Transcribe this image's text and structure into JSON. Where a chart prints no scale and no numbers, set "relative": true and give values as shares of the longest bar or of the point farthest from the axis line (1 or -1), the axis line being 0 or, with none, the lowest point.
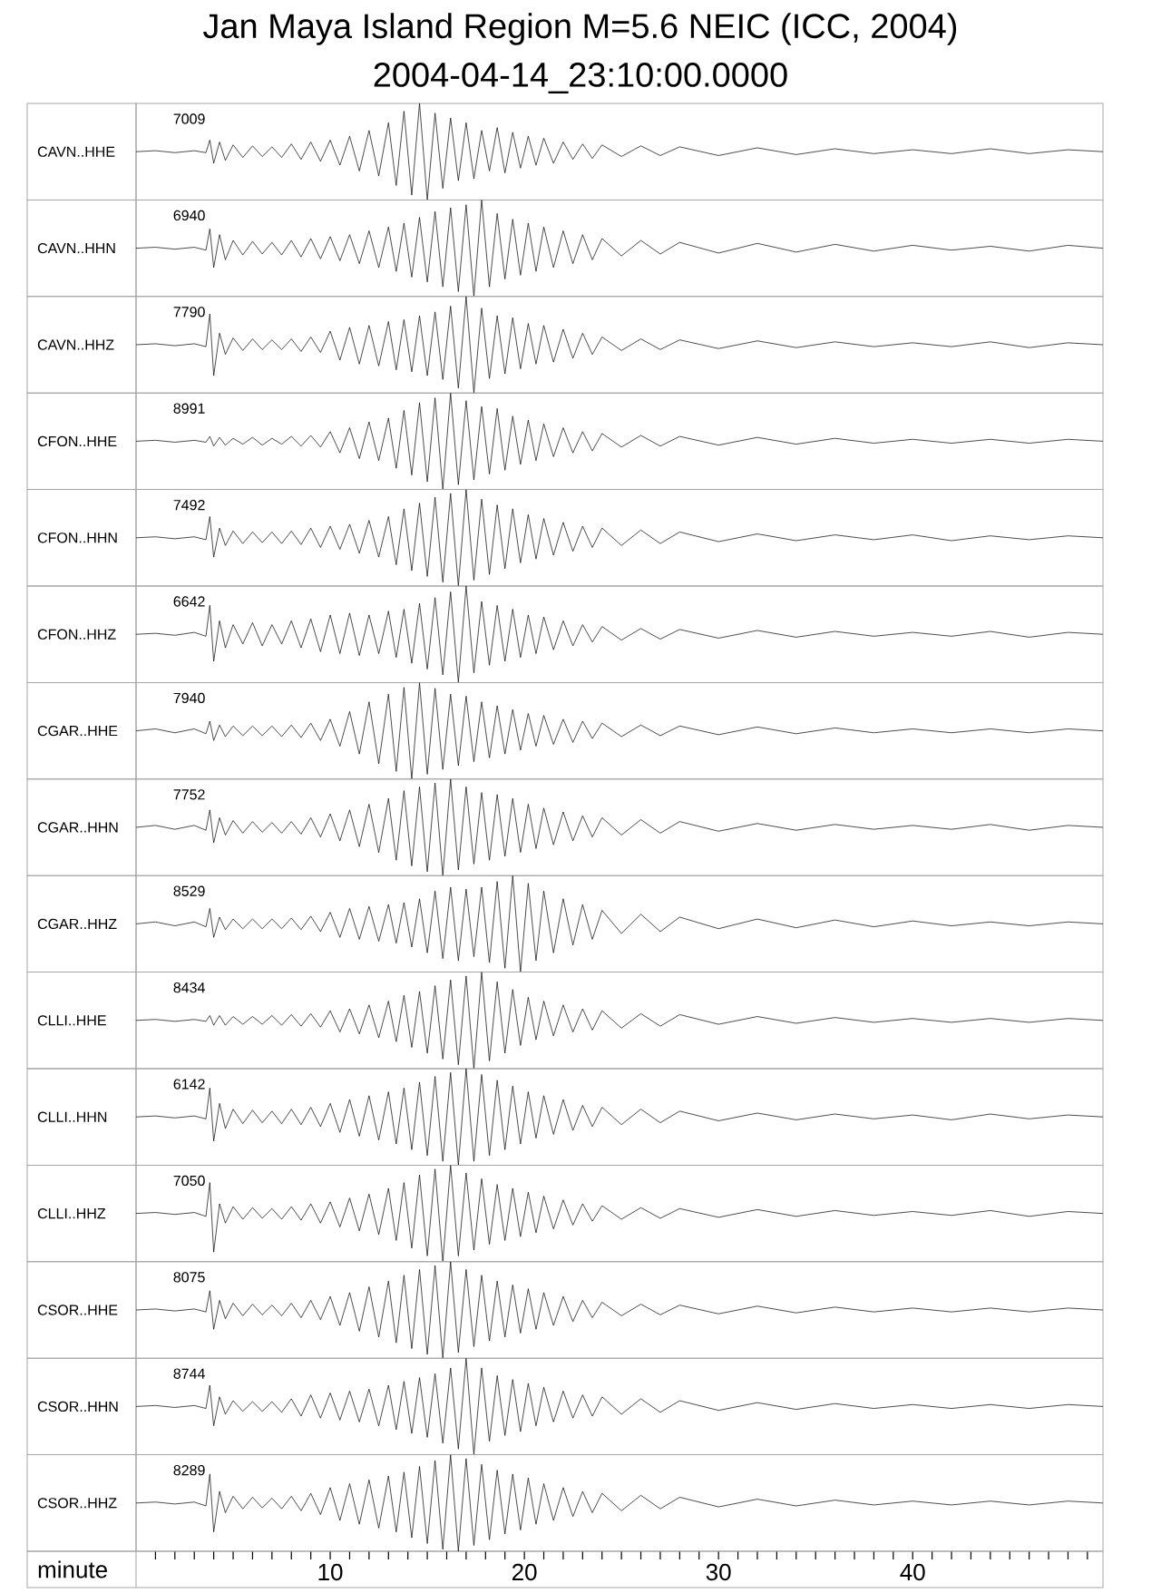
{
  "chart_data": [
    {
      "type": "line",
      "title": "Jan Maya Island Region M=5.6 NEIC (ICC, 2004)",
      "subtitle": "2004-04-14_23:10:00.0000",
      "ylabel": "CAVN..HHE",
      "annotations": [
        "7009"
      ],
      "relative": true,
      "tick_labels": false,
      "color": "#000000",
      "xlim": [
        0,
        49.8
      ],
      "x": [
        0,
        1,
        2,
        3,
        3.6,
        3.8,
        4,
        4.3,
        4.6,
        5,
        5.5,
        6,
        6.5,
        7,
        7.5,
        8,
        8.5,
        9,
        9.5,
        10,
        10.5,
        11,
        11.5,
        12,
        12.5,
        13,
        13.4,
        13.8,
        14.2,
        14.6,
        15,
        15.4,
        15.8,
        16.2,
        16.6,
        17,
        17.4,
        17.8,
        18.2,
        18.6,
        19,
        19.4,
        19.8,
        20.2,
        20.6,
        21,
        21.5,
        22,
        22.5,
        23,
        23.5,
        24,
        25,
        26,
        27,
        28,
        30,
        32,
        34,
        36,
        38,
        40,
        42,
        44,
        46,
        48,
        49.8
      ],
      "values": [
        0.5,
        0.51,
        0.49,
        0.51,
        0.49,
        0.62,
        0.38,
        0.6,
        0.41,
        0.57,
        0.44,
        0.56,
        0.45,
        0.55,
        0.44,
        0.58,
        0.42,
        0.6,
        0.4,
        0.62,
        0.36,
        0.66,
        0.3,
        0.72,
        0.25,
        0.8,
        0.15,
        0.92,
        0.05,
        1.0,
        0.0,
        0.9,
        0.12,
        0.85,
        0.2,
        0.8,
        0.22,
        0.72,
        0.3,
        0.75,
        0.28,
        0.7,
        0.33,
        0.66,
        0.36,
        0.64,
        0.38,
        0.6,
        0.42,
        0.58,
        0.43,
        0.57,
        0.45,
        0.56,
        0.46,
        0.55,
        0.46,
        0.54,
        0.47,
        0.53,
        0.48,
        0.52,
        0.48,
        0.53,
        0.48,
        0.52,
        0.5
      ]
    },
    {
      "type": "line",
      "ylabel": "CAVN..HHN",
      "annotations": [
        "6940"
      ],
      "relative": true,
      "tick_labels": false,
      "color": "#000000",
      "xlim": [
        0,
        49.8
      ],
      "x": [
        0,
        1,
        2,
        3,
        3.6,
        3.8,
        4,
        4.3,
        4.6,
        5,
        5.5,
        6,
        6.5,
        7,
        7.5,
        8,
        8.5,
        9,
        9.5,
        10,
        10.5,
        11,
        11.5,
        12,
        12.5,
        13,
        13.4,
        13.8,
        14.2,
        14.6,
        15,
        15.4,
        15.8,
        16.2,
        16.6,
        17,
        17.4,
        17.8,
        18.2,
        18.6,
        19,
        19.4,
        19.8,
        20.2,
        20.6,
        21,
        21.5,
        22,
        22.5,
        23,
        23.5,
        24,
        25,
        26,
        27,
        28,
        30,
        32,
        34,
        36,
        38,
        40,
        42,
        44,
        46,
        48,
        49.8
      ],
      "values": [
        0.5,
        0.51,
        0.49,
        0.51,
        0.48,
        0.7,
        0.3,
        0.64,
        0.38,
        0.58,
        0.43,
        0.57,
        0.44,
        0.56,
        0.43,
        0.58,
        0.41,
        0.6,
        0.39,
        0.62,
        0.37,
        0.64,
        0.34,
        0.68,
        0.3,
        0.72,
        0.26,
        0.76,
        0.2,
        0.82,
        0.15,
        0.88,
        0.1,
        0.92,
        0.05,
        0.95,
        0.0,
        1.0,
        0.1,
        0.86,
        0.18,
        0.8,
        0.22,
        0.76,
        0.26,
        0.72,
        0.3,
        0.68,
        0.34,
        0.64,
        0.38,
        0.6,
        0.42,
        0.58,
        0.44,
        0.56,
        0.45,
        0.55,
        0.46,
        0.54,
        0.47,
        0.53,
        0.48,
        0.52,
        0.47,
        0.53,
        0.5
      ]
    },
    {
      "type": "line",
      "ylabel": "CAVN..HHZ",
      "annotations": [
        "7790"
      ],
      "relative": true,
      "tick_labels": false,
      "color": "#000000",
      "xlim": [
        0,
        49.8
      ],
      "x": [
        0,
        1,
        2,
        3,
        3.6,
        3.8,
        4,
        4.3,
        4.6,
        5,
        5.5,
        6,
        6.5,
        7,
        7.5,
        8,
        8.5,
        9,
        9.5,
        10,
        10.5,
        11,
        11.5,
        12,
        12.5,
        13,
        13.4,
        13.8,
        14.2,
        14.6,
        15,
        15.4,
        15.8,
        16.2,
        16.6,
        17,
        17.4,
        17.8,
        18.2,
        18.6,
        19,
        19.4,
        19.8,
        20.2,
        20.6,
        21,
        21.5,
        22,
        22.5,
        23,
        23.5,
        24,
        25,
        26,
        27,
        28,
        30,
        32,
        34,
        36,
        38,
        40,
        42,
        44,
        46,
        48,
        49.8
      ],
      "values": [
        0.5,
        0.51,
        0.49,
        0.51,
        0.48,
        0.82,
        0.18,
        0.62,
        0.4,
        0.57,
        0.44,
        0.56,
        0.45,
        0.55,
        0.45,
        0.56,
        0.43,
        0.58,
        0.42,
        0.64,
        0.34,
        0.68,
        0.3,
        0.7,
        0.28,
        0.74,
        0.24,
        0.76,
        0.22,
        0.8,
        0.18,
        0.84,
        0.14,
        0.9,
        0.05,
        1.0,
        0.0,
        0.88,
        0.15,
        0.8,
        0.2,
        0.78,
        0.25,
        0.72,
        0.3,
        0.7,
        0.32,
        0.66,
        0.36,
        0.62,
        0.4,
        0.58,
        0.44,
        0.56,
        0.45,
        0.55,
        0.46,
        0.54,
        0.47,
        0.53,
        0.48,
        0.52,
        0.48,
        0.53,
        0.47,
        0.52,
        0.5
      ]
    },
    {
      "type": "line",
      "ylabel": "CFON..HHE",
      "annotations": [
        "8991"
      ],
      "relative": true,
      "tick_labels": false,
      "color": "#000000",
      "xlim": [
        0,
        49.8
      ],
      "x": [
        0,
        1,
        2,
        3,
        3.6,
        3.8,
        4,
        4.3,
        4.6,
        5,
        5.5,
        6,
        6.5,
        7,
        7.5,
        8,
        8.5,
        9,
        9.5,
        10,
        10.5,
        11,
        11.5,
        12,
        12.5,
        13,
        13.4,
        13.8,
        14.2,
        14.6,
        15,
        15.4,
        15.8,
        16.2,
        16.6,
        17,
        17.4,
        17.8,
        18.2,
        18.6,
        19,
        19.4,
        19.8,
        20.2,
        20.6,
        21,
        21.5,
        22,
        22.5,
        23,
        23.5,
        24,
        25,
        26,
        27,
        28,
        30,
        32,
        34,
        36,
        38,
        40,
        42,
        44,
        46,
        48,
        49.8
      ],
      "values": [
        0.5,
        0.51,
        0.49,
        0.51,
        0.49,
        0.55,
        0.45,
        0.54,
        0.46,
        0.53,
        0.47,
        0.54,
        0.46,
        0.53,
        0.47,
        0.55,
        0.45,
        0.56,
        0.44,
        0.6,
        0.38,
        0.64,
        0.32,
        0.7,
        0.3,
        0.74,
        0.22,
        0.82,
        0.15,
        0.9,
        0.08,
        0.95,
        0.0,
        1.0,
        0.05,
        0.92,
        0.1,
        0.86,
        0.16,
        0.84,
        0.2,
        0.76,
        0.26,
        0.72,
        0.3,
        0.68,
        0.34,
        0.64,
        0.38,
        0.6,
        0.4,
        0.58,
        0.44,
        0.56,
        0.45,
        0.55,
        0.46,
        0.54,
        0.47,
        0.53,
        0.48,
        0.52,
        0.48,
        0.52,
        0.48,
        0.52,
        0.5
      ]
    },
    {
      "type": "line",
      "ylabel": "CFON..HHN",
      "annotations": [
        "7492"
      ],
      "relative": true,
      "tick_labels": false,
      "color": "#000000",
      "xlim": [
        0,
        49.8
      ],
      "x": [
        0,
        1,
        2,
        3,
        3.6,
        3.8,
        4,
        4.3,
        4.6,
        5,
        5.5,
        6,
        6.5,
        7,
        7.5,
        8,
        8.5,
        9,
        9.5,
        10,
        10.5,
        11,
        11.5,
        12,
        12.5,
        13,
        13.4,
        13.8,
        14.2,
        14.6,
        15,
        15.4,
        15.8,
        16.2,
        16.6,
        17,
        17.4,
        17.8,
        18.2,
        18.6,
        19,
        19.4,
        19.8,
        20.2,
        20.6,
        21,
        21.5,
        22,
        22.5,
        23,
        23.5,
        24,
        25,
        26,
        27,
        28,
        30,
        32,
        34,
        36,
        38,
        40,
        42,
        44,
        46,
        48,
        49.8
      ],
      "values": [
        0.5,
        0.51,
        0.49,
        0.51,
        0.48,
        0.72,
        0.3,
        0.6,
        0.42,
        0.57,
        0.44,
        0.56,
        0.45,
        0.56,
        0.44,
        0.57,
        0.43,
        0.6,
        0.4,
        0.62,
        0.38,
        0.64,
        0.34,
        0.68,
        0.3,
        0.72,
        0.22,
        0.8,
        0.16,
        0.86,
        0.1,
        0.92,
        0.04,
        0.96,
        0.0,
        1.0,
        0.06,
        0.9,
        0.12,
        0.84,
        0.18,
        0.8,
        0.24,
        0.74,
        0.28,
        0.7,
        0.32,
        0.66,
        0.36,
        0.62,
        0.4,
        0.6,
        0.42,
        0.58,
        0.44,
        0.56,
        0.46,
        0.54,
        0.47,
        0.53,
        0.48,
        0.53,
        0.47,
        0.52,
        0.48,
        0.52,
        0.5
      ]
    },
    {
      "type": "line",
      "ylabel": "CFON..HHZ",
      "annotations": [
        "6642"
      ],
      "relative": true,
      "tick_labels": false,
      "color": "#000000",
      "xlim": [
        0,
        49.8
      ],
      "x": [
        0,
        1,
        2,
        3,
        3.6,
        3.8,
        4,
        4.3,
        4.6,
        5,
        5.5,
        6,
        6.5,
        7,
        7.5,
        8,
        8.5,
        9,
        9.5,
        10,
        10.5,
        11,
        11.5,
        12,
        12.5,
        13,
        13.4,
        13.8,
        14.2,
        14.6,
        15,
        15.4,
        15.8,
        16.2,
        16.6,
        17,
        17.4,
        17.8,
        18.2,
        18.6,
        19,
        19.4,
        19.8,
        20.2,
        20.6,
        21,
        21.5,
        22,
        22.5,
        23,
        23.5,
        24,
        25,
        26,
        27,
        28,
        30,
        32,
        34,
        36,
        38,
        40,
        42,
        44,
        46,
        48,
        49.8
      ],
      "values": [
        0.5,
        0.51,
        0.49,
        0.52,
        0.48,
        0.8,
        0.22,
        0.64,
        0.36,
        0.6,
        0.4,
        0.62,
        0.38,
        0.6,
        0.4,
        0.64,
        0.36,
        0.66,
        0.32,
        0.7,
        0.3,
        0.72,
        0.28,
        0.7,
        0.3,
        0.74,
        0.26,
        0.76,
        0.2,
        0.82,
        0.14,
        0.88,
        0.08,
        0.94,
        0.0,
        1.0,
        0.1,
        0.84,
        0.18,
        0.8,
        0.22,
        0.76,
        0.26,
        0.7,
        0.3,
        0.68,
        0.34,
        0.64,
        0.38,
        0.6,
        0.42,
        0.58,
        0.44,
        0.56,
        0.45,
        0.55,
        0.46,
        0.54,
        0.47,
        0.53,
        0.48,
        0.52,
        0.48,
        0.53,
        0.47,
        0.52,
        0.5
      ]
    },
    {
      "type": "line",
      "ylabel": "CGAR..HHE",
      "annotations": [
        "7940"
      ],
      "relative": true,
      "tick_labels": false,
      "color": "#000000",
      "xlim": [
        0,
        49.8
      ],
      "x": [
        0,
        1,
        2,
        3,
        3.6,
        3.8,
        4,
        4.3,
        4.6,
        5,
        5.5,
        6,
        6.5,
        7,
        7.5,
        8,
        8.5,
        9,
        9.5,
        10,
        10.5,
        11,
        11.5,
        12,
        12.5,
        13,
        13.4,
        13.8,
        14.2,
        14.6,
        15,
        15.4,
        15.8,
        16.2,
        16.6,
        17,
        17.4,
        17.8,
        18.2,
        18.6,
        19,
        19.4,
        19.8,
        20.2,
        20.6,
        21,
        21.5,
        22,
        22.5,
        23,
        23.5,
        24,
        25,
        26,
        27,
        28,
        30,
        32,
        34,
        36,
        38,
        40,
        42,
        44,
        46,
        48,
        49.8
      ],
      "values": [
        0.5,
        0.52,
        0.48,
        0.52,
        0.47,
        0.6,
        0.4,
        0.56,
        0.44,
        0.55,
        0.45,
        0.55,
        0.45,
        0.55,
        0.44,
        0.56,
        0.43,
        0.58,
        0.4,
        0.62,
        0.34,
        0.7,
        0.26,
        0.8,
        0.16,
        0.88,
        0.08,
        0.95,
        0.0,
        1.0,
        0.05,
        0.94,
        0.1,
        0.88,
        0.14,
        0.86,
        0.18,
        0.8,
        0.22,
        0.76,
        0.26,
        0.72,
        0.3,
        0.68,
        0.34,
        0.66,
        0.36,
        0.62,
        0.38,
        0.6,
        0.42,
        0.58,
        0.44,
        0.56,
        0.45,
        0.55,
        0.46,
        0.54,
        0.47,
        0.53,
        0.48,
        0.52,
        0.48,
        0.52,
        0.48,
        0.52,
        0.5
      ]
    },
    {
      "type": "line",
      "ylabel": "CGAR..HHN",
      "annotations": [
        "7752"
      ],
      "relative": true,
      "tick_labels": false,
      "color": "#000000",
      "xlim": [
        0,
        49.8
      ],
      "x": [
        0,
        1,
        2,
        3,
        3.6,
        3.8,
        4,
        4.3,
        4.6,
        5,
        5.5,
        6,
        6.5,
        7,
        7.5,
        8,
        8.5,
        9,
        9.5,
        10,
        10.5,
        11,
        11.5,
        12,
        12.5,
        13,
        13.4,
        13.8,
        14.2,
        14.6,
        15,
        15.4,
        15.8,
        16.2,
        16.6,
        17,
        17.4,
        17.8,
        18.2,
        18.6,
        19,
        19.4,
        19.8,
        20.2,
        20.6,
        21,
        21.5,
        22,
        22.5,
        23,
        23.5,
        24,
        25,
        26,
        27,
        28,
        30,
        32,
        34,
        36,
        38,
        40,
        42,
        44,
        46,
        48,
        49.8
      ],
      "values": [
        0.5,
        0.52,
        0.48,
        0.52,
        0.47,
        0.68,
        0.34,
        0.6,
        0.42,
        0.57,
        0.44,
        0.56,
        0.45,
        0.55,
        0.44,
        0.56,
        0.43,
        0.6,
        0.4,
        0.64,
        0.36,
        0.68,
        0.3,
        0.74,
        0.24,
        0.8,
        0.16,
        0.88,
        0.1,
        0.92,
        0.04,
        0.96,
        0.0,
        1.0,
        0.06,
        0.92,
        0.12,
        0.86,
        0.16,
        0.84,
        0.2,
        0.8,
        0.24,
        0.74,
        0.28,
        0.7,
        0.32,
        0.66,
        0.36,
        0.62,
        0.4,
        0.6,
        0.42,
        0.58,
        0.44,
        0.56,
        0.46,
        0.54,
        0.47,
        0.53,
        0.48,
        0.52,
        0.48,
        0.53,
        0.47,
        0.52,
        0.5
      ]
    },
    {
      "type": "line",
      "ylabel": "CGAR..HHZ",
      "annotations": [
        "8529"
      ],
      "relative": true,
      "tick_labels": false,
      "color": "#000000",
      "xlim": [
        0,
        49.8
      ],
      "x": [
        0,
        1,
        2,
        3,
        3.6,
        3.8,
        4,
        4.3,
        4.6,
        5,
        5.5,
        6,
        6.5,
        7,
        7.5,
        8,
        8.5,
        9,
        9.5,
        10,
        10.5,
        11,
        11.5,
        12,
        12.5,
        13,
        13.4,
        13.8,
        14.2,
        14.6,
        15,
        15.4,
        15.8,
        16.2,
        16.6,
        17,
        17.4,
        17.8,
        18.2,
        18.6,
        19,
        19.4,
        19.8,
        20.2,
        20.6,
        21,
        21.5,
        22,
        22.5,
        23,
        23.5,
        24,
        25,
        26,
        27,
        28,
        30,
        32,
        34,
        36,
        38,
        40,
        42,
        44,
        46,
        48,
        49.8
      ],
      "values": [
        0.5,
        0.52,
        0.48,
        0.52,
        0.47,
        0.66,
        0.36,
        0.57,
        0.44,
        0.55,
        0.45,
        0.55,
        0.45,
        0.55,
        0.45,
        0.56,
        0.44,
        0.58,
        0.42,
        0.62,
        0.36,
        0.66,
        0.34,
        0.68,
        0.32,
        0.7,
        0.3,
        0.72,
        0.26,
        0.76,
        0.2,
        0.84,
        0.14,
        0.88,
        0.12,
        0.86,
        0.16,
        0.88,
        0.1,
        0.94,
        0.04,
        1.0,
        0.0,
        0.92,
        0.12,
        0.84,
        0.2,
        0.76,
        0.28,
        0.7,
        0.34,
        0.64,
        0.4,
        0.6,
        0.42,
        0.57,
        0.45,
        0.55,
        0.46,
        0.54,
        0.47,
        0.53,
        0.48,
        0.52,
        0.48,
        0.52,
        0.5
      ]
    },
    {
      "type": "line",
      "ylabel": "CLLI..HHE",
      "annotations": [
        "8434"
      ],
      "relative": true,
      "tick_labels": false,
      "color": "#000000",
      "xlim": [
        0,
        49.8
      ],
      "x": [
        0,
        1,
        2,
        3,
        3.6,
        3.8,
        4,
        4.3,
        4.6,
        5,
        5.5,
        6,
        6.5,
        7,
        7.5,
        8,
        8.5,
        9,
        9.5,
        10,
        10.5,
        11,
        11.5,
        12,
        12.5,
        13,
        13.4,
        13.8,
        14.2,
        14.6,
        15,
        15.4,
        15.8,
        16.2,
        16.6,
        17,
        17.4,
        17.8,
        18.2,
        18.6,
        19,
        19.4,
        19.8,
        20.2,
        20.6,
        21,
        21.5,
        22,
        22.5,
        23,
        23.5,
        24,
        25,
        26,
        27,
        28,
        30,
        32,
        34,
        36,
        38,
        40,
        42,
        44,
        46,
        48,
        49.8
      ],
      "values": [
        0.5,
        0.51,
        0.49,
        0.51,
        0.49,
        0.55,
        0.45,
        0.55,
        0.45,
        0.54,
        0.46,
        0.54,
        0.46,
        0.55,
        0.45,
        0.56,
        0.44,
        0.57,
        0.43,
        0.6,
        0.38,
        0.62,
        0.36,
        0.66,
        0.32,
        0.7,
        0.28,
        0.76,
        0.22,
        0.8,
        0.16,
        0.86,
        0.1,
        0.92,
        0.04,
        0.96,
        0.0,
        1.0,
        0.08,
        0.9,
        0.16,
        0.82,
        0.24,
        0.74,
        0.3,
        0.7,
        0.34,
        0.66,
        0.38,
        0.62,
        0.4,
        0.6,
        0.42,
        0.57,
        0.44,
        0.56,
        0.46,
        0.54,
        0.47,
        0.53,
        0.48,
        0.52,
        0.48,
        0.52,
        0.48,
        0.52,
        0.5
      ]
    },
    {
      "type": "line",
      "ylabel": "CLLI..HHN",
      "annotations": [
        "6142"
      ],
      "relative": true,
      "tick_labels": false,
      "color": "#000000",
      "xlim": [
        0,
        49.8
      ],
      "x": [
        0,
        1,
        2,
        3,
        3.6,
        3.8,
        4,
        4.3,
        4.6,
        5,
        5.5,
        6,
        6.5,
        7,
        7.5,
        8,
        8.5,
        9,
        9.5,
        10,
        10.5,
        11,
        11.5,
        12,
        12.5,
        13,
        13.4,
        13.8,
        14.2,
        14.6,
        15,
        15.4,
        15.8,
        16.2,
        16.6,
        17,
        17.4,
        17.8,
        18.2,
        18.6,
        19,
        19.4,
        19.8,
        20.2,
        20.6,
        21,
        21.5,
        22,
        22.5,
        23,
        23.5,
        24,
        25,
        26,
        27,
        28,
        30,
        32,
        34,
        36,
        38,
        40,
        42,
        44,
        46,
        48,
        49.8
      ],
      "values": [
        0.5,
        0.51,
        0.49,
        0.51,
        0.48,
        0.8,
        0.25,
        0.64,
        0.38,
        0.58,
        0.43,
        0.57,
        0.44,
        0.56,
        0.43,
        0.58,
        0.42,
        0.6,
        0.4,
        0.64,
        0.34,
        0.68,
        0.3,
        0.72,
        0.26,
        0.76,
        0.22,
        0.8,
        0.16,
        0.86,
        0.1,
        0.92,
        0.04,
        0.96,
        0.0,
        1.0,
        0.04,
        0.94,
        0.1,
        0.88,
        0.16,
        0.82,
        0.22,
        0.76,
        0.28,
        0.72,
        0.32,
        0.68,
        0.36,
        0.62,
        0.4,
        0.6,
        0.42,
        0.58,
        0.44,
        0.56,
        0.46,
        0.54,
        0.47,
        0.53,
        0.48,
        0.52,
        0.47,
        0.53,
        0.48,
        0.52,
        0.5
      ]
    },
    {
      "type": "line",
      "ylabel": "CLLI..HHZ",
      "annotations": [
        "7050"
      ],
      "relative": true,
      "tick_labels": false,
      "color": "#000000",
      "xlim": [
        0,
        49.8
      ],
      "x": [
        0,
        1,
        2,
        3,
        3.6,
        3.8,
        4,
        4.3,
        4.6,
        5,
        5.5,
        6,
        6.5,
        7,
        7.5,
        8,
        8.5,
        9,
        9.5,
        10,
        10.5,
        11,
        11.5,
        12,
        12.5,
        13,
        13.4,
        13.8,
        14.2,
        14.6,
        15,
        15.4,
        15.8,
        16.2,
        16.6,
        17,
        17.4,
        17.8,
        18.2,
        18.6,
        19,
        19.4,
        19.8,
        20.2,
        20.6,
        21,
        21.5,
        22,
        22.5,
        23,
        23.5,
        24,
        25,
        26,
        27,
        28,
        30,
        32,
        34,
        36,
        38,
        40,
        42,
        44,
        46,
        48,
        49.8
      ],
      "values": [
        0.5,
        0.51,
        0.49,
        0.51,
        0.47,
        0.82,
        0.1,
        0.6,
        0.4,
        0.57,
        0.44,
        0.56,
        0.45,
        0.55,
        0.44,
        0.57,
        0.43,
        0.6,
        0.4,
        0.62,
        0.36,
        0.66,
        0.32,
        0.7,
        0.28,
        0.76,
        0.22,
        0.82,
        0.14,
        0.9,
        0.06,
        0.96,
        0.0,
        1.0,
        0.06,
        0.92,
        0.12,
        0.86,
        0.18,
        0.8,
        0.22,
        0.76,
        0.26,
        0.72,
        0.3,
        0.68,
        0.34,
        0.64,
        0.38,
        0.6,
        0.42,
        0.58,
        0.44,
        0.56,
        0.45,
        0.55,
        0.46,
        0.54,
        0.47,
        0.53,
        0.48,
        0.52,
        0.48,
        0.53,
        0.47,
        0.52,
        0.5
      ]
    },
    {
      "type": "line",
      "ylabel": "CSOR..HHE",
      "annotations": [
        "8075"
      ],
      "relative": true,
      "tick_labels": false,
      "color": "#000000",
      "xlim": [
        0,
        49.8
      ],
      "x": [
        0,
        1,
        2,
        3,
        3.6,
        3.8,
        4,
        4.3,
        4.6,
        5,
        5.5,
        6,
        6.5,
        7,
        7.5,
        8,
        8.5,
        9,
        9.5,
        10,
        10.5,
        11,
        11.5,
        12,
        12.5,
        13,
        13.4,
        13.8,
        14.2,
        14.6,
        15,
        15.4,
        15.8,
        16.2,
        16.6,
        17,
        17.4,
        17.8,
        18.2,
        18.6,
        19,
        19.4,
        19.8,
        20.2,
        20.6,
        21,
        21.5,
        22,
        22.5,
        23,
        23.5,
        24,
        25,
        26,
        27,
        28,
        30,
        32,
        34,
        36,
        38,
        40,
        42,
        44,
        46,
        48,
        49.8
      ],
      "values": [
        0.5,
        0.51,
        0.49,
        0.51,
        0.48,
        0.7,
        0.3,
        0.6,
        0.41,
        0.57,
        0.44,
        0.56,
        0.45,
        0.55,
        0.44,
        0.57,
        0.42,
        0.6,
        0.4,
        0.64,
        0.34,
        0.68,
        0.28,
        0.74,
        0.22,
        0.8,
        0.16,
        0.86,
        0.1,
        0.92,
        0.04,
        0.96,
        0.0,
        1.0,
        0.06,
        0.92,
        0.12,
        0.86,
        0.18,
        0.8,
        0.22,
        0.76,
        0.26,
        0.72,
        0.3,
        0.68,
        0.34,
        0.64,
        0.38,
        0.6,
        0.42,
        0.58,
        0.44,
        0.56,
        0.45,
        0.55,
        0.46,
        0.54,
        0.47,
        0.53,
        0.48,
        0.52,
        0.48,
        0.52,
        0.48,
        0.52,
        0.5
      ]
    },
    {
      "type": "line",
      "ylabel": "CSOR..HHN",
      "annotations": [
        "8744"
      ],
      "relative": true,
      "tick_labels": false,
      "color": "#000000",
      "xlim": [
        0,
        49.8
      ],
      "x": [
        0,
        1,
        2,
        3,
        3.6,
        3.8,
        4,
        4.3,
        4.6,
        5,
        5.5,
        6,
        6.5,
        7,
        7.5,
        8,
        8.5,
        9,
        9.5,
        10,
        10.5,
        11,
        11.5,
        12,
        12.5,
        13,
        13.4,
        13.8,
        14.2,
        14.6,
        15,
        15.4,
        15.8,
        16.2,
        16.6,
        17,
        17.4,
        17.8,
        18.2,
        18.6,
        19,
        19.4,
        19.8,
        20.2,
        20.6,
        21,
        21.5,
        22,
        22.5,
        23,
        23.5,
        24,
        25,
        26,
        27,
        28,
        30,
        32,
        34,
        36,
        38,
        40,
        42,
        44,
        46,
        48,
        49.8
      ],
      "values": [
        0.5,
        0.51,
        0.49,
        0.51,
        0.48,
        0.72,
        0.3,
        0.6,
        0.42,
        0.56,
        0.45,
        0.55,
        0.45,
        0.55,
        0.44,
        0.58,
        0.4,
        0.62,
        0.38,
        0.64,
        0.36,
        0.66,
        0.34,
        0.68,
        0.3,
        0.72,
        0.26,
        0.76,
        0.22,
        0.8,
        0.18,
        0.84,
        0.12,
        0.9,
        0.06,
        1.0,
        0.0,
        0.9,
        0.14,
        0.82,
        0.2,
        0.78,
        0.24,
        0.74,
        0.3,
        0.7,
        0.34,
        0.66,
        0.38,
        0.62,
        0.4,
        0.6,
        0.42,
        0.58,
        0.44,
        0.56,
        0.46,
        0.54,
        0.47,
        0.53,
        0.48,
        0.52,
        0.48,
        0.52,
        0.48,
        0.52,
        0.5
      ]
    },
    {
      "type": "line",
      "ylabel": "CSOR..HHZ",
      "annotations": [
        "8289"
      ],
      "relative": true,
      "tick_labels": "x",
      "xlabel": "minute",
      "color": "#000000",
      "xlim": [
        0,
        49.8
      ],
      "xticks": [
        {
          "value": 1,
          "label": null
        },
        {
          "value": 2,
          "label": null
        },
        {
          "value": 3,
          "label": null
        },
        {
          "value": 4,
          "label": null
        },
        {
          "value": 5,
          "label": null
        },
        {
          "value": 6,
          "label": null
        },
        {
          "value": 7,
          "label": null
        },
        {
          "value": 8,
          "label": null
        },
        {
          "value": 9,
          "label": null
        },
        10,
        {
          "value": 11,
          "label": null
        },
        {
          "value": 12,
          "label": null
        },
        {
          "value": 13,
          "label": null
        },
        {
          "value": 14,
          "label": null
        },
        {
          "value": 15,
          "label": null
        },
        {
          "value": 16,
          "label": null
        },
        {
          "value": 17,
          "label": null
        },
        {
          "value": 18,
          "label": null
        },
        {
          "value": 19,
          "label": null
        },
        20,
        {
          "value": 21,
          "label": null
        },
        {
          "value": 22,
          "label": null
        },
        {
          "value": 23,
          "label": null
        },
        {
          "value": 24,
          "label": null
        },
        {
          "value": 25,
          "label": null
        },
        {
          "value": 26,
          "label": null
        },
        {
          "value": 27,
          "label": null
        },
        {
          "value": 28,
          "label": null
        },
        {
          "value": 29,
          "label": null
        },
        30,
        {
          "value": 31,
          "label": null
        },
        {
          "value": 32,
          "label": null
        },
        {
          "value": 33,
          "label": null
        },
        {
          "value": 34,
          "label": null
        },
        {
          "value": 35,
          "label": null
        },
        {
          "value": 36,
          "label": null
        },
        {
          "value": 37,
          "label": null
        },
        {
          "value": 38,
          "label": null
        },
        {
          "value": 39,
          "label": null
        },
        40,
        {
          "value": 41,
          "label": null
        },
        {
          "value": 42,
          "label": null
        },
        {
          "value": 43,
          "label": null
        },
        {
          "value": 44,
          "label": null
        },
        {
          "value": 45,
          "label": null
        },
        {
          "value": 46,
          "label": null
        },
        {
          "value": 47,
          "label": null
        },
        {
          "value": 48,
          "label": null
        },
        {
          "value": 49,
          "label": null
        }
      ],
      "x": [
        0,
        1,
        2,
        3,
        3.6,
        3.8,
        4,
        4.3,
        4.6,
        5,
        5.5,
        6,
        6.5,
        7,
        7.5,
        8,
        8.5,
        9,
        9.5,
        10,
        10.5,
        11,
        11.5,
        12,
        12.5,
        13,
        13.4,
        13.8,
        14.2,
        14.6,
        15,
        15.4,
        15.8,
        16.2,
        16.6,
        17,
        17.4,
        17.8,
        18.2,
        18.6,
        19,
        19.4,
        19.8,
        20.2,
        20.6,
        21,
        21.5,
        22,
        22.5,
        23,
        23.5,
        24,
        25,
        26,
        27,
        28,
        30,
        32,
        34,
        36,
        38,
        40,
        42,
        44,
        46,
        48,
        49.8
      ],
      "values": [
        0.5,
        0.51,
        0.49,
        0.51,
        0.47,
        0.8,
        0.2,
        0.62,
        0.4,
        0.57,
        0.44,
        0.56,
        0.45,
        0.55,
        0.44,
        0.57,
        0.42,
        0.6,
        0.38,
        0.66,
        0.32,
        0.7,
        0.28,
        0.74,
        0.24,
        0.78,
        0.2,
        0.82,
        0.14,
        0.88,
        0.08,
        0.94,
        0.02,
        1.0,
        0.0,
        0.96,
        0.06,
        0.9,
        0.12,
        0.84,
        0.18,
        0.8,
        0.22,
        0.76,
        0.28,
        0.7,
        0.32,
        0.66,
        0.36,
        0.62,
        0.4,
        0.6,
        0.42,
        0.58,
        0.44,
        0.56,
        0.46,
        0.54,
        0.47,
        0.53,
        0.48,
        0.52,
        0.48,
        0.52,
        0.48,
        0.52,
        0.5
      ]
    }
  ]
}
